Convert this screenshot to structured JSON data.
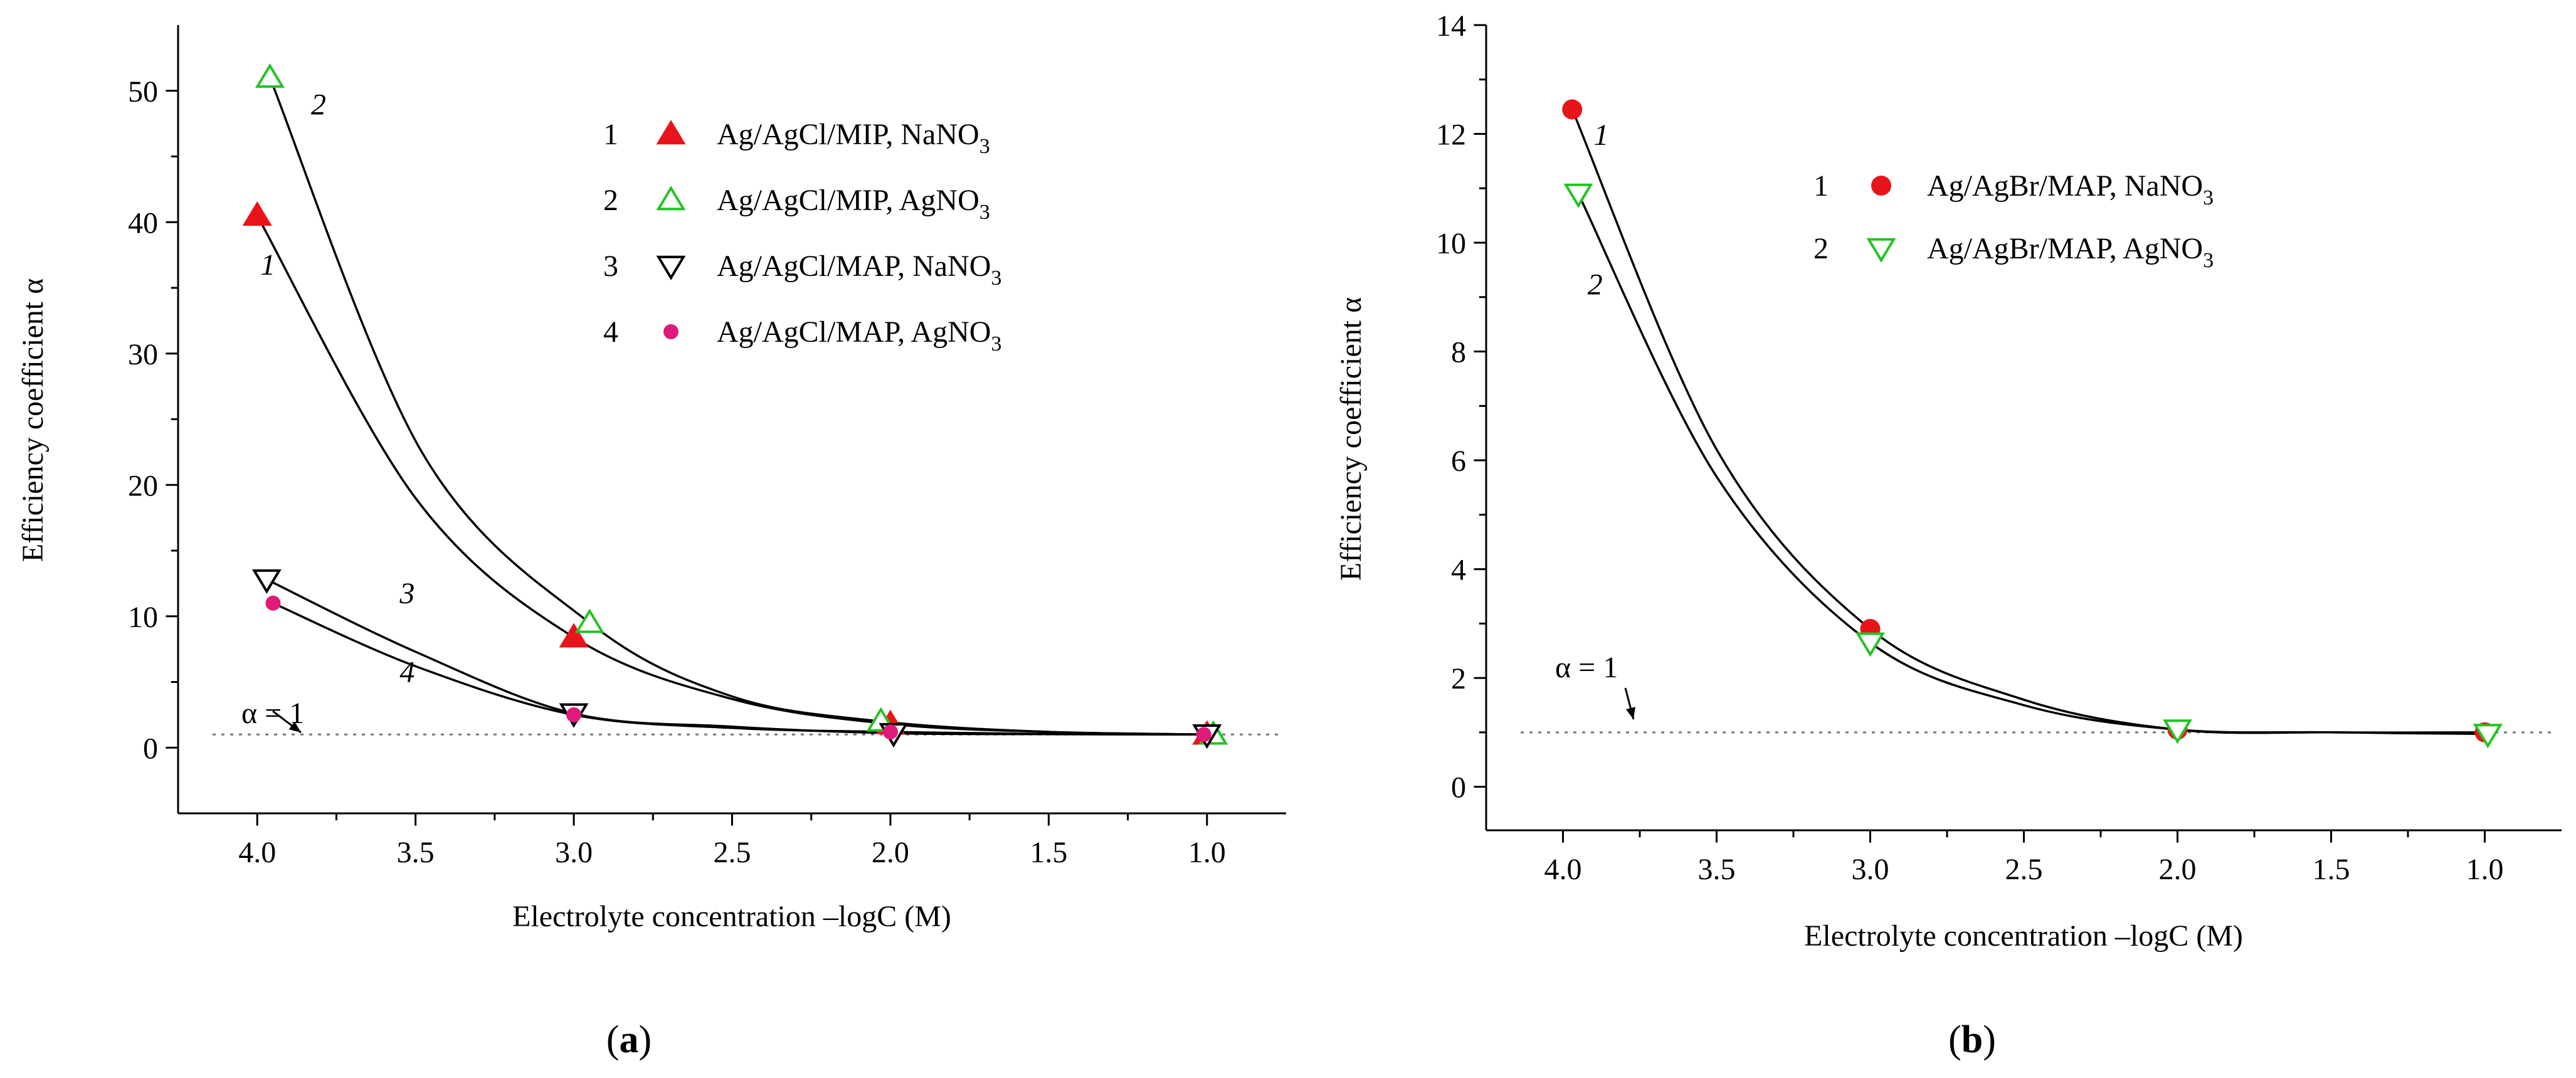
{
  "chart_data": [
    {
      "id": "a",
      "type": "scatter",
      "panel_label": "a",
      "xlabel": "Electrolyte concentration –logC (M)",
      "ylabel": "Efficiency coefficient α",
      "xlim": [
        4.25,
        0.75
      ],
      "ylim": [
        -5,
        55
      ],
      "x_ticks": [
        4.0,
        3.5,
        3.0,
        2.5,
        2.0,
        1.5,
        1.0
      ],
      "x_tick_labels": [
        "4.0",
        "3.5",
        "3.0",
        "2.5",
        "2.0",
        "1.5",
        "1.0"
      ],
      "y_ticks": [
        0,
        10,
        20,
        30,
        40,
        50
      ],
      "y_tick_labels": [
        "0",
        "10",
        "20",
        "30",
        "40",
        "50"
      ],
      "reference_line": {
        "y": 1,
        "label": "α = 1",
        "style": "dotted"
      },
      "legend_position": "top-right",
      "series": [
        {
          "num": "1",
          "name_main": "Ag/AgCl/MIP, NaNO",
          "name_sub": "3",
          "marker": "triangle-up-filled",
          "color": "#e8141b",
          "x": [
            4.0,
            3.0,
            2.0,
            1.0
          ],
          "values": [
            40.5,
            8.4,
            1.8,
            1.0
          ]
        },
        {
          "num": "2",
          "name_main": "Ag/AgCl/MIP, AgNO",
          "name_sub": "3",
          "marker": "triangle-up-open",
          "color": "#22c322",
          "x": [
            3.96,
            2.95,
            2.03,
            0.98
          ],
          "values": [
            51,
            9.5,
            2.0,
            1.0
          ]
        },
        {
          "num": "3",
          "name_main": "Ag/AgCl/MAP, NaNO",
          "name_sub": "3",
          "marker": "triangle-down-open",
          "color": "#000000",
          "x": [
            3.97,
            3.0,
            1.99,
            1.0
          ],
          "values": [
            12.8,
            2.6,
            1.1,
            1.0
          ]
        },
        {
          "num": "4",
          "name_main": "Ag/AgCl/MAP, AgNO",
          "name_sub": "3",
          "marker": "circle-filled-small",
          "color": "#e0197a",
          "x": [
            3.95,
            3.0,
            2.0,
            1.01
          ],
          "values": [
            11,
            2.5,
            1.2,
            1.0
          ]
        }
      ],
      "curves": [
        {
          "label": "2",
          "x": [
            3.96,
            3.48,
            2.95,
            2.5,
            2.03,
            1.5,
            0.98
          ],
          "values": [
            51,
            22.5,
            9.5,
            3.9,
            2.0,
            1.2,
            1.0
          ]
        },
        {
          "label": "1",
          "x": [
            4.0,
            3.5,
            3.0,
            2.5,
            2.0,
            1.5,
            1.0
          ],
          "values": [
            40.5,
            19.0,
            8.4,
            3.7,
            1.8,
            1.2,
            1.0
          ]
        },
        {
          "label": "3",
          "x": [
            3.97,
            3.5,
            3.0,
            2.5,
            1.99,
            1.5,
            1.0
          ],
          "values": [
            12.8,
            7.3,
            2.6,
            1.6,
            1.1,
            1.03,
            1.0
          ]
        },
        {
          "label": "4",
          "x": [
            3.95,
            3.5,
            3.0,
            2.5,
            2.0,
            1.5,
            1.01
          ],
          "values": [
            11.0,
            6.2,
            2.5,
            1.5,
            1.2,
            1.05,
            1.0
          ]
        }
      ]
    },
    {
      "id": "b",
      "type": "scatter",
      "panel_label": "b",
      "xlabel": "Electrolyte concentration –logC (M)",
      "ylabel": "Efficiency coefficient α",
      "xlim": [
        4.25,
        0.75
      ],
      "ylim": [
        -0.8,
        14
      ],
      "x_ticks": [
        4.0,
        3.5,
        3.0,
        2.5,
        2.0,
        1.5,
        1.0
      ],
      "x_tick_labels": [
        "4.0",
        "3.5",
        "3.0",
        "2.5",
        "2.0",
        "1.5",
        "1.0"
      ],
      "y_ticks": [
        0,
        2,
        4,
        6,
        8,
        10,
        12,
        14
      ],
      "y_tick_labels": [
        "0",
        "2",
        "4",
        "6",
        "8",
        "10",
        "12",
        "14"
      ],
      "reference_line": {
        "y": 1,
        "label": "α = 1",
        "style": "dotted"
      },
      "legend_position": "top-right",
      "series": [
        {
          "num": "1",
          "name_main": "Ag/AgBr/MAP, NaNO",
          "name_sub": "3",
          "marker": "circle-filled",
          "color": "#e8141b",
          "x": [
            3.97,
            3.0,
            2.0,
            1.0
          ],
          "values": [
            12.45,
            2.9,
            1.05,
            1.0
          ]
        },
        {
          "num": "2",
          "name_main": "Ag/AgBr/MAP, AgNO",
          "name_sub": "3",
          "marker": "triangle-down-open",
          "color": "#22c322",
          "x": [
            3.95,
            3.0,
            2.0,
            0.99
          ],
          "values": [
            10.9,
            2.65,
            1.05,
            0.97
          ]
        }
      ],
      "curves": [
        {
          "label": "1",
          "x": [
            3.97,
            3.5,
            3.0,
            2.5,
            2.0,
            1.5,
            1.0
          ],
          "values": [
            12.45,
            6.2,
            2.9,
            1.6,
            1.05,
            1.0,
            1.0
          ]
        },
        {
          "label": "2",
          "x": [
            3.95,
            3.5,
            3.0,
            2.5,
            2.0,
            1.5,
            0.99
          ],
          "values": [
            10.9,
            5.7,
            2.65,
            1.5,
            1.05,
            1.0,
            0.97
          ]
        }
      ]
    }
  ]
}
